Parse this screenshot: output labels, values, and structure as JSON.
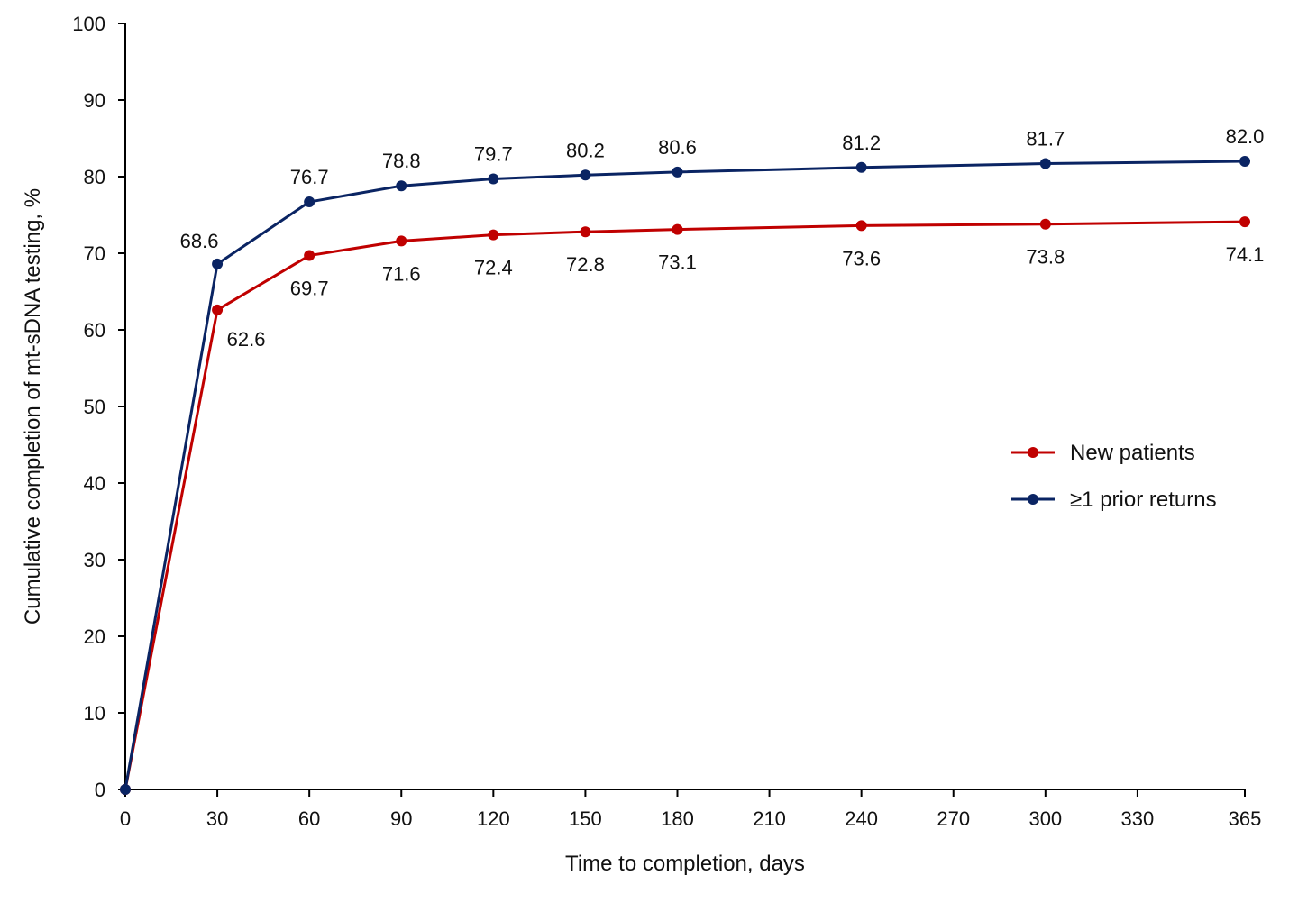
{
  "chart_data": {
    "type": "line",
    "title": "",
    "xlabel": "Time to completion, days",
    "ylabel": "Cumulative completion of mt-sDNA testing, %",
    "xlim": [
      0,
      365
    ],
    "ylim": [
      0,
      100
    ],
    "x_ticks": [
      0,
      30,
      60,
      90,
      120,
      150,
      180,
      210,
      240,
      270,
      300,
      330,
      365
    ],
    "y_ticks": [
      0,
      10,
      20,
      30,
      40,
      50,
      60,
      70,
      80,
      90,
      100
    ],
    "grid": false,
    "legend_position": "right",
    "series": [
      {
        "name": "New patients",
        "color": "#c00000",
        "label_position": "below",
        "x": [
          0,
          30,
          60,
          90,
          120,
          150,
          180,
          240,
          300,
          365
        ],
        "values": [
          0,
          62.6,
          69.7,
          71.6,
          72.4,
          72.8,
          73.1,
          73.6,
          73.8,
          74.1
        ],
        "labels": [
          "",
          "62.6",
          "69.7",
          "71.6",
          "72.4",
          "72.8",
          "73.1",
          "73.6",
          "73.8",
          "74.1"
        ]
      },
      {
        "name": "≥1 prior returns",
        "color": "#0a2463",
        "label_position": "above",
        "x": [
          0,
          30,
          60,
          90,
          120,
          150,
          180,
          240,
          300,
          365
        ],
        "values": [
          0,
          68.6,
          76.7,
          78.8,
          79.7,
          80.2,
          80.6,
          81.2,
          81.7,
          82.0
        ],
        "labels": [
          "",
          "68.6",
          "76.7",
          "78.8",
          "79.7",
          "80.2",
          "80.6",
          "81.2",
          "81.7",
          "82.0"
        ]
      }
    ]
  }
}
